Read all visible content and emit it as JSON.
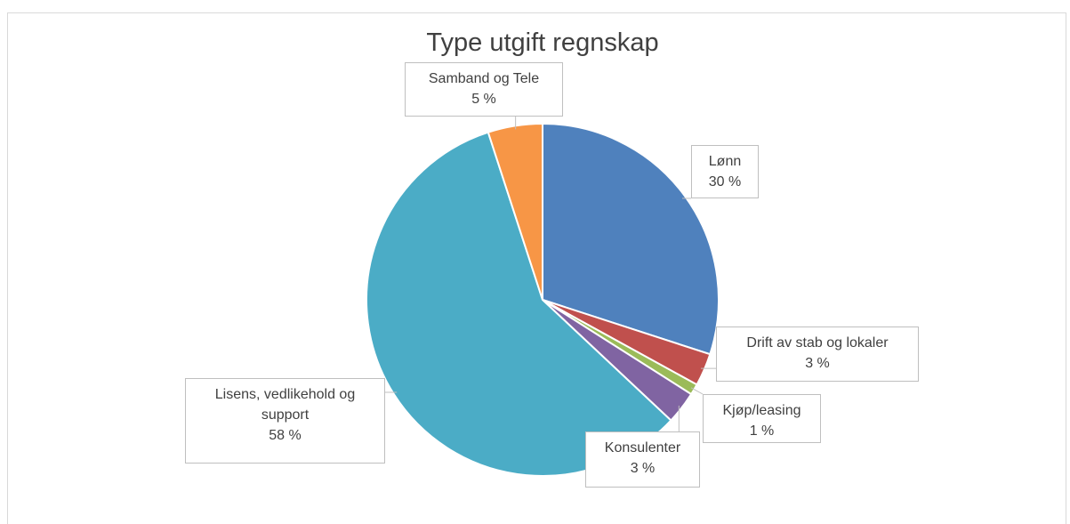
{
  "chart_data": {
    "type": "pie",
    "title": "Type utgift regnskap",
    "categories": [
      "Lønn",
      "Drift av stab og lokaler",
      "Kjøp/leasing",
      "Konsulenter",
      "Lisens, vedlikehold og support",
      "Samband og Tele"
    ],
    "values": [
      30,
      3,
      1,
      3,
      58,
      5
    ],
    "value_labels": [
      "30 %",
      "3 %",
      "1 %",
      "3 %",
      "58 %",
      "5 %"
    ],
    "colors": [
      "#4f81bd",
      "#c0504d",
      "#9bbb59",
      "#8064a2",
      "#4bacc6",
      "#f79646"
    ]
  }
}
